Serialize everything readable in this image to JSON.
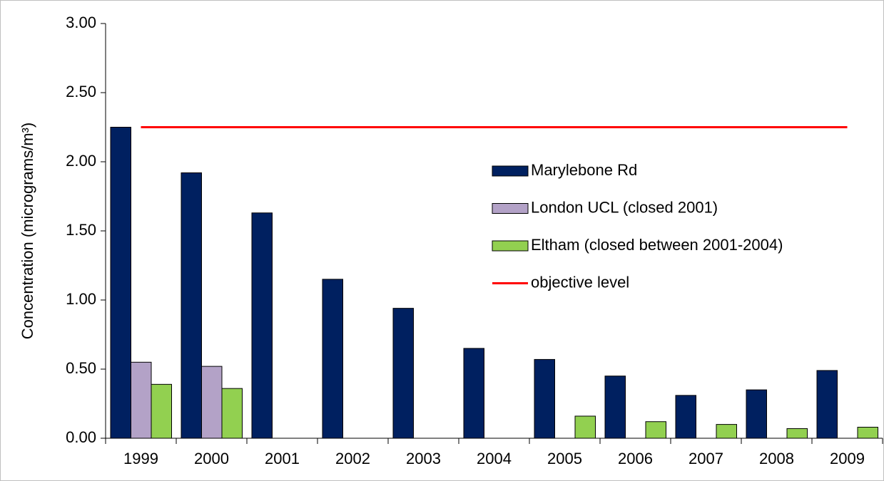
{
  "chart_data": {
    "type": "bar",
    "y_label": "Concentration (micrograms/m³)",
    "categories": [
      "1999",
      "2000",
      "2001",
      "2002",
      "2003",
      "2004",
      "2005",
      "2006",
      "2007",
      "2008",
      "2009"
    ],
    "series": [
      {
        "name": "Marylebone Rd",
        "color": "#002060",
        "values": [
          2.25,
          1.92,
          1.63,
          1.15,
          0.94,
          0.65,
          0.57,
          0.45,
          0.31,
          0.35,
          0.49
        ]
      },
      {
        "name": "London UCL (closed 2001)",
        "color": "#b3a2c7",
        "values": [
          0.55,
          0.52,
          null,
          null,
          null,
          null,
          null,
          null,
          null,
          null,
          null
        ]
      },
      {
        "name": "Eltham (closed between 2001-2004)",
        "color": "#92d050",
        "values": [
          0.39,
          0.36,
          null,
          null,
          null,
          null,
          0.16,
          0.12,
          0.1,
          0.07,
          0.08
        ]
      },
      {
        "name": "objective level",
        "color": "#ff0000",
        "type": "line",
        "values": [
          2.25,
          2.25,
          2.25,
          2.25,
          2.25,
          2.25,
          2.25,
          2.25,
          2.25,
          2.25,
          2.25
        ]
      }
    ],
    "ylim": [
      0,
      3
    ],
    "yticks": [
      {
        "value": 0,
        "label": "0.00"
      },
      {
        "value": 0.5,
        "label": "0.50"
      },
      {
        "value": 1,
        "label": "1.00"
      },
      {
        "value": 1.5,
        "label": "1.50"
      },
      {
        "value": 2,
        "label": "2.00"
      },
      {
        "value": 2.5,
        "label": "2.50"
      },
      {
        "value": 3,
        "label": "3.00"
      }
    ],
    "legend": "right"
  }
}
